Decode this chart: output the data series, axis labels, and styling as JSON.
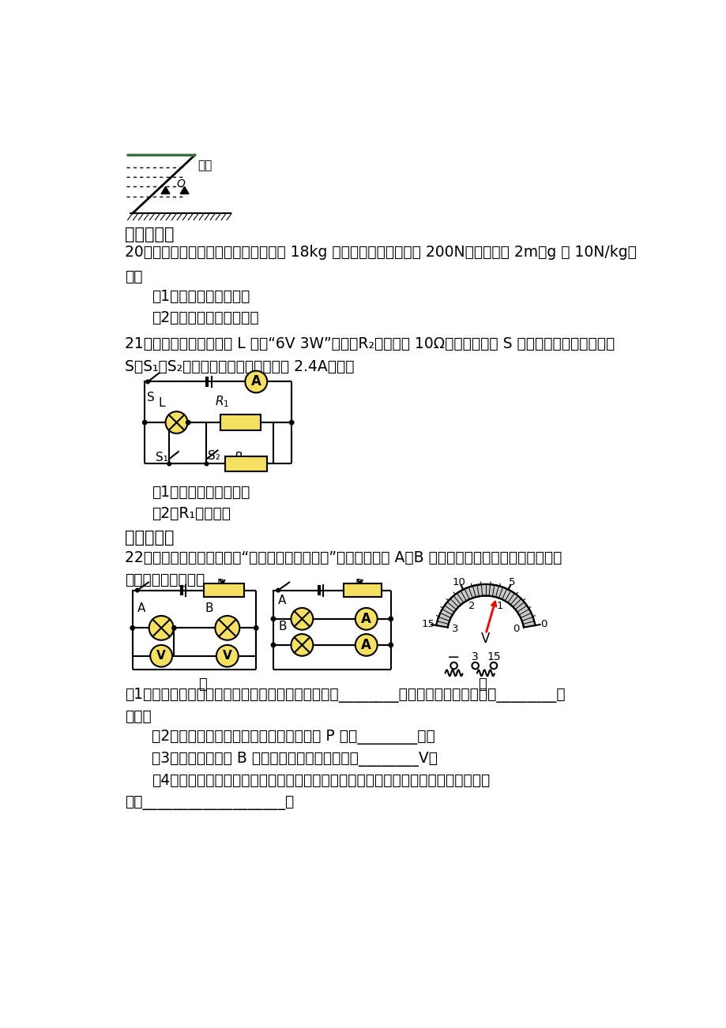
{
  "bg_color": "#ffffff",
  "section4_title": "四、计算题",
  "q20_text": "20．工人用一个定滑轮匀速提升质量为 18kg 的物体，所用的拉力为 200N，物体升高 2m，g 取 10N/kg。",
  "q20_qiu": "求：",
  "q20_1": "（1）物体受到的重力；",
  "q20_2": "（2）定滑轮的机械效率。",
  "q21_text": "21．如图所示电路，灯泡 L 标有“6V 3W”字样，R₂的阻值为 10Ω。只闭合开关 S 时，灯泡正常发光；开关",
  "q21_text2": "S、S₁、S₂都闭合时，电流表的示数为 2.4A。求：",
  "q21_1": "（1）灯泡的额定电流；",
  "q21_2": "（2）R₁的阻值。",
  "section5_title": "五、实验题",
  "q22_text": "22．如图甲所示，小明在做“比较两个灯泡的亮暗”的实验时，将 A、B 两个阻值不等的白炽灯泡，分别串",
  "q22_text2": "联和并联在电路中。",
  "q22_jia": "甲",
  "q22_yi": "乙",
  "q22_1": "（1）将两个灯泡串联在电路中，目的是控制电路中的________不变，比较灯泡的亮暗与________的",
  "q22_1b": "关系。",
  "q22_2": "（2）闭合开关前，应将滑动变阻器的滑片 P 置于________端。",
  "q22_3": "（3）串联时，灯泡 B 两端的电压如图乙所示，为________V。",
  "q22_4": "（4）将两个灯泡并联在电路中时，小明在表格中记录的电流值有错误，请你帮他指出",
  "q22_4b": "来：___________________。"
}
